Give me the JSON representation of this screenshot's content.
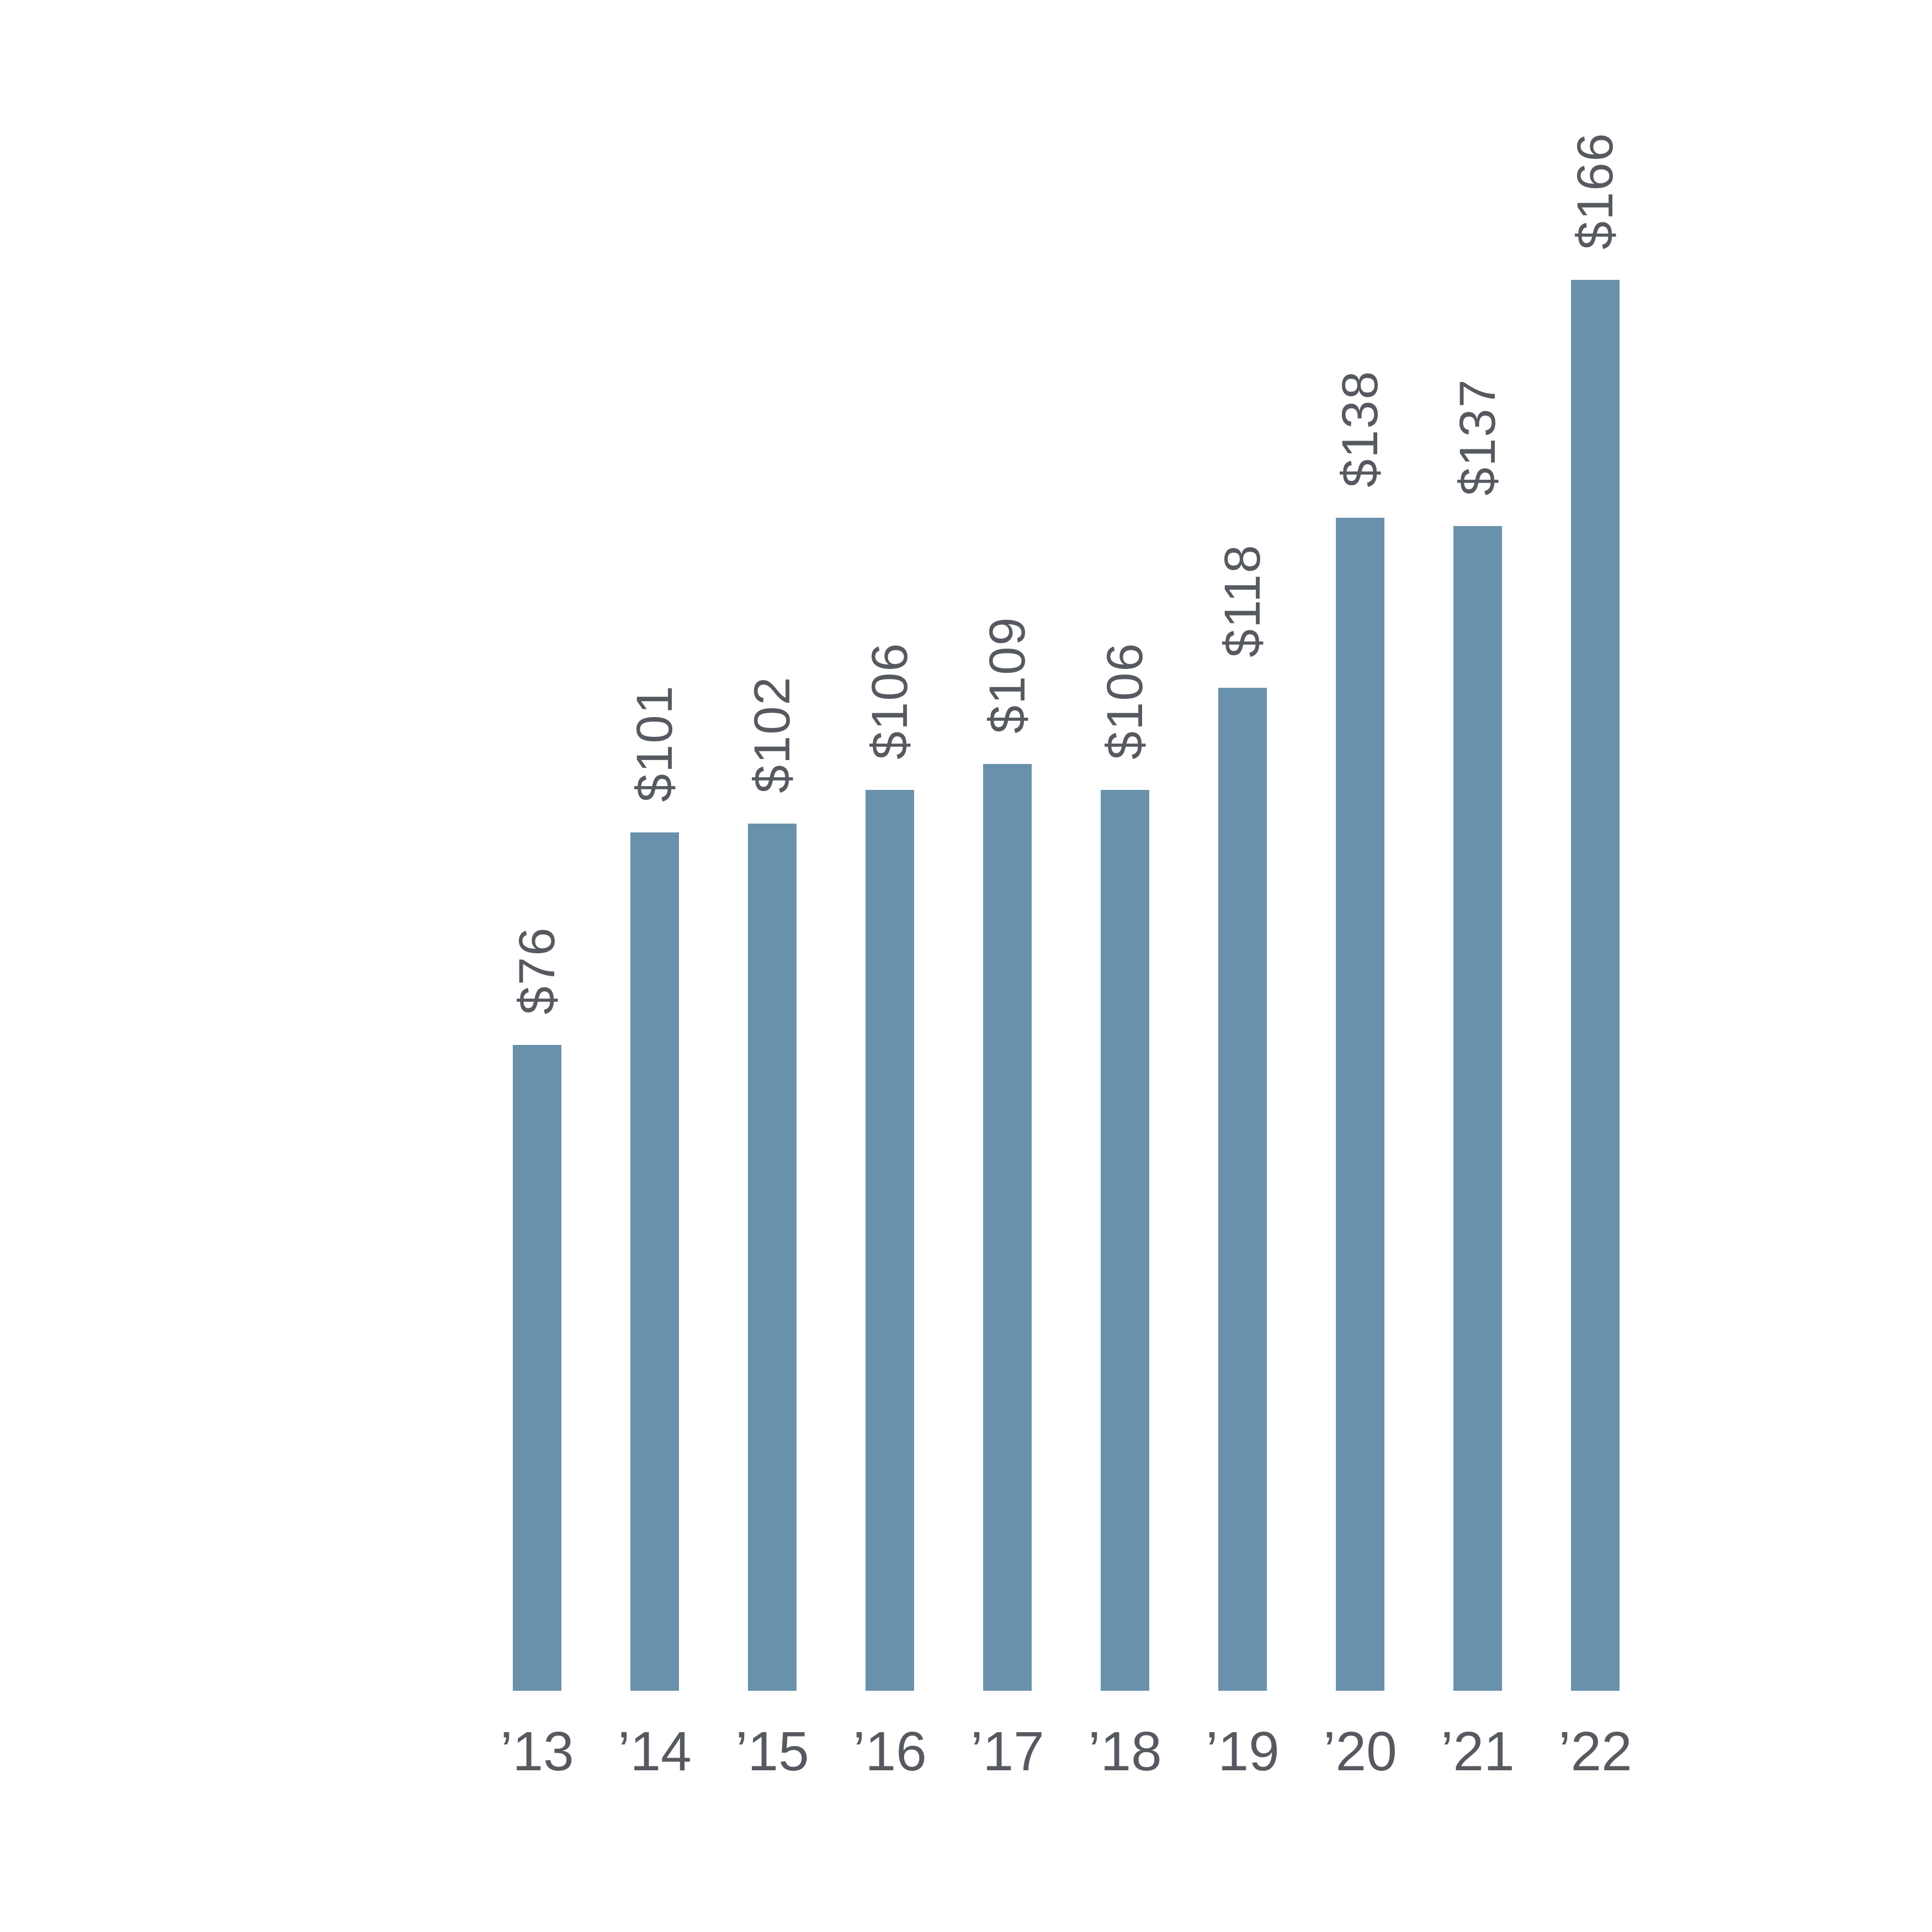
{
  "chart_data": {
    "type": "bar",
    "categories": [
      "’13",
      "’14",
      "’15",
      "’16",
      "’17",
      "’18",
      "’19",
      "’20",
      "’21",
      "’22"
    ],
    "values": [
      76,
      101,
      102,
      106,
      109,
      106,
      118,
      138,
      137,
      166
    ],
    "value_labels": [
      "$76",
      "$101",
      "$102",
      "$106",
      "$109",
      "$106",
      "$118",
      "$138",
      "$137",
      "$166"
    ],
    "title": "",
    "xlabel": "",
    "ylabel": "",
    "ylim": [
      0,
      166
    ],
    "grid": false,
    "legend": "none",
    "axis_lines": "none",
    "value_label_rotation_deg": -90,
    "bar_color": "#6991ac",
    "label_color": "#565a60",
    "background_color": "#ffffff"
  }
}
